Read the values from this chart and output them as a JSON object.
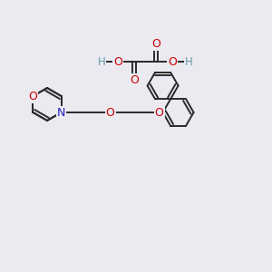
{
  "background_color": "#eaeaf0",
  "atom_colors": {
    "O": "#cc0000",
    "N": "#2222cc",
    "C": "#404040",
    "H": "#6699aa"
  },
  "bond_color": "#2a2a2a",
  "bond_lw": 1.4,
  "figsize": [
    3.0,
    3.0
  ],
  "dpi": 100
}
